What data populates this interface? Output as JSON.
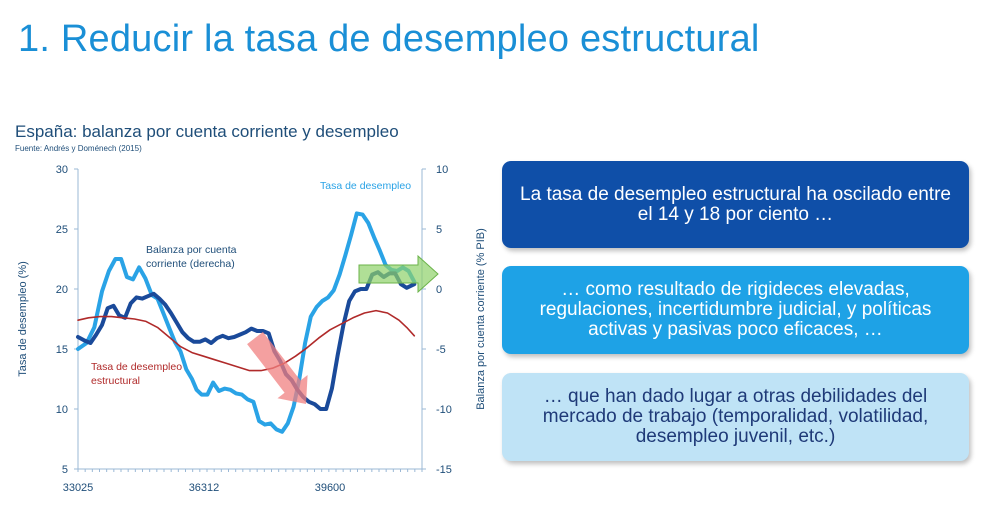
{
  "slide": {
    "title": "1. Reducir la tasa de desempleo estructural"
  },
  "chart_data": {
    "type": "line",
    "title": "España: balanza por cuenta corriente y desempleo",
    "source": "Fuente: Andrés y Doménech (2015)",
    "ylabel_left": "Tasa de desempleo (%)",
    "ylabel_right": "Balanza por cuenta corriente (% PIB)",
    "ylim_left": [
      5,
      30
    ],
    "ylim_right": [
      -15,
      10
    ],
    "yticks_left": [
      "5",
      "10",
      "15",
      "20",
      "25",
      "30"
    ],
    "yticks_right": [
      "-15",
      "-10",
      "-5",
      "0",
      "5",
      "10"
    ],
    "xlim": [
      33025,
      42000
    ],
    "xtick_labels": [
      "33025",
      "36312",
      "39600"
    ],
    "xtick_values": [
      33025,
      36312,
      39600
    ],
    "colors": {
      "unemployment": "#2aa3e6",
      "current_account": "#1a4a9a",
      "structural": "#b02a2a",
      "red_arrow": "#f08080",
      "green_arrow": "#8fd16a"
    },
    "annotations": {
      "unemployment": "Tasa de desempleo",
      "current_account_1": "Balanza por cuenta",
      "current_account_2": "corriente (derecha)",
      "structural_1": "Tasa de desempleo",
      "structural_2": "estructural"
    },
    "series": [
      {
        "name": "Tasa de desempleo",
        "axis": "left",
        "x": [
          33025,
          33250,
          33450,
          33650,
          33830,
          34000,
          34150,
          34300,
          34460,
          34620,
          34780,
          34950,
          35100,
          35250,
          35400,
          35550,
          35700,
          35850,
          36000,
          36120,
          36250,
          36400,
          36550,
          36700,
          36850,
          37000,
          37150,
          37300,
          37450,
          37600,
          37750,
          37900,
          38050,
          38200,
          38350,
          38500,
          38650,
          38800,
          38950,
          39100,
          39250,
          39400,
          39550,
          39700,
          39850,
          40000,
          40150,
          40300,
          40450,
          40600,
          40750,
          40900,
          41050,
          41200,
          41350,
          41500,
          41650,
          41800
        ],
        "values": [
          15.0,
          15.5,
          16.8,
          19.8,
          21.5,
          22.5,
          22.5,
          21.0,
          20.8,
          21.8,
          20.9,
          19.5,
          19.2,
          18.0,
          16.8,
          15.6,
          14.8,
          13.3,
          12.5,
          11.6,
          11.2,
          11.2,
          12.2,
          11.5,
          11.7,
          11.6,
          11.3,
          11.2,
          10.8,
          10.6,
          9.0,
          8.7,
          8.8,
          8.3,
          8.1,
          8.8,
          10.2,
          12.5,
          15.5,
          17.7,
          18.5,
          19.0,
          19.3,
          19.9,
          21.2,
          22.8,
          24.5,
          26.3,
          26.2,
          25.5,
          24.3,
          23.2,
          22.0,
          21.6,
          21.5,
          21.8,
          21.5,
          20.6
        ]
      },
      {
        "name": "Balanza por cuenta corriente (derecha)",
        "axis": "right",
        "x": [
          33025,
          33200,
          33350,
          33500,
          33650,
          33800,
          33950,
          34100,
          34250,
          34400,
          34550,
          34700,
          34850,
          35000,
          35150,
          35300,
          35450,
          35600,
          35750,
          35900,
          36050,
          36200,
          36350,
          36500,
          36650,
          36800,
          36950,
          37100,
          37250,
          37400,
          37550,
          37700,
          37850,
          38000,
          38150,
          38300,
          38450,
          38600,
          38750,
          38900,
          39050,
          39200,
          39350,
          39500,
          39650,
          39800,
          39950,
          40100,
          40250,
          40400,
          40550,
          40700,
          40850,
          41000,
          41150,
          41300,
          41450,
          41600,
          41800
        ],
        "values": [
          -4.0,
          -4.3,
          -4.5,
          -3.8,
          -3.0,
          -1.6,
          -1.4,
          -2.2,
          -2.4,
          -1.2,
          -0.7,
          -0.8,
          -0.6,
          -0.4,
          -0.8,
          -1.3,
          -2.0,
          -2.8,
          -3.6,
          -4.1,
          -4.4,
          -4.4,
          -4.2,
          -4.5,
          -4.1,
          -3.9,
          -4.1,
          -4.0,
          -3.8,
          -3.6,
          -3.3,
          -3.5,
          -3.5,
          -3.7,
          -5.2,
          -6.0,
          -7.1,
          -7.6,
          -8.4,
          -9.0,
          -9.4,
          -9.6,
          -10.0,
          -10.0,
          -8.3,
          -5.5,
          -3.0,
          -1.0,
          -0.2,
          0.0,
          0.0,
          1.2,
          1.4,
          1.0,
          1.3,
          1.3,
          0.4,
          0.1,
          0.4
        ]
      },
      {
        "name": "Tasa de desempleo estructural",
        "axis": "left",
        "x": [
          33025,
          33300,
          33600,
          33900,
          34200,
          34500,
          34800,
          35100,
          35400,
          35700,
          36000,
          36300,
          36600,
          36900,
          37200,
          37500,
          37800,
          38100,
          38400,
          38700,
          39000,
          39300,
          39600,
          39900,
          40200,
          40500,
          40800,
          41100,
          41400,
          41600,
          41800
        ],
        "values": [
          17.4,
          17.6,
          17.7,
          17.7,
          17.6,
          17.5,
          17.3,
          16.8,
          16.0,
          15.2,
          14.7,
          14.4,
          14.1,
          13.8,
          13.5,
          13.2,
          13.2,
          13.4,
          13.8,
          14.4,
          15.1,
          15.9,
          16.6,
          17.1,
          17.6,
          18.0,
          18.2,
          18.0,
          17.4,
          16.8,
          16.1
        ]
      }
    ]
  },
  "boxes": {
    "box1": "La tasa de desempleo estructural ha oscilado entre el 14 y 18 por ciento …",
    "box2": "… como resultado de rigideces elevadas, regulaciones, incertidumbre judicial, y políticas activas y pasivas poco eficaces, …",
    "box3": "… que han dado lugar a otras debilidades del mercado de trabajo (temporalidad, volatilidad, desempleo juvenil, etc.)"
  }
}
